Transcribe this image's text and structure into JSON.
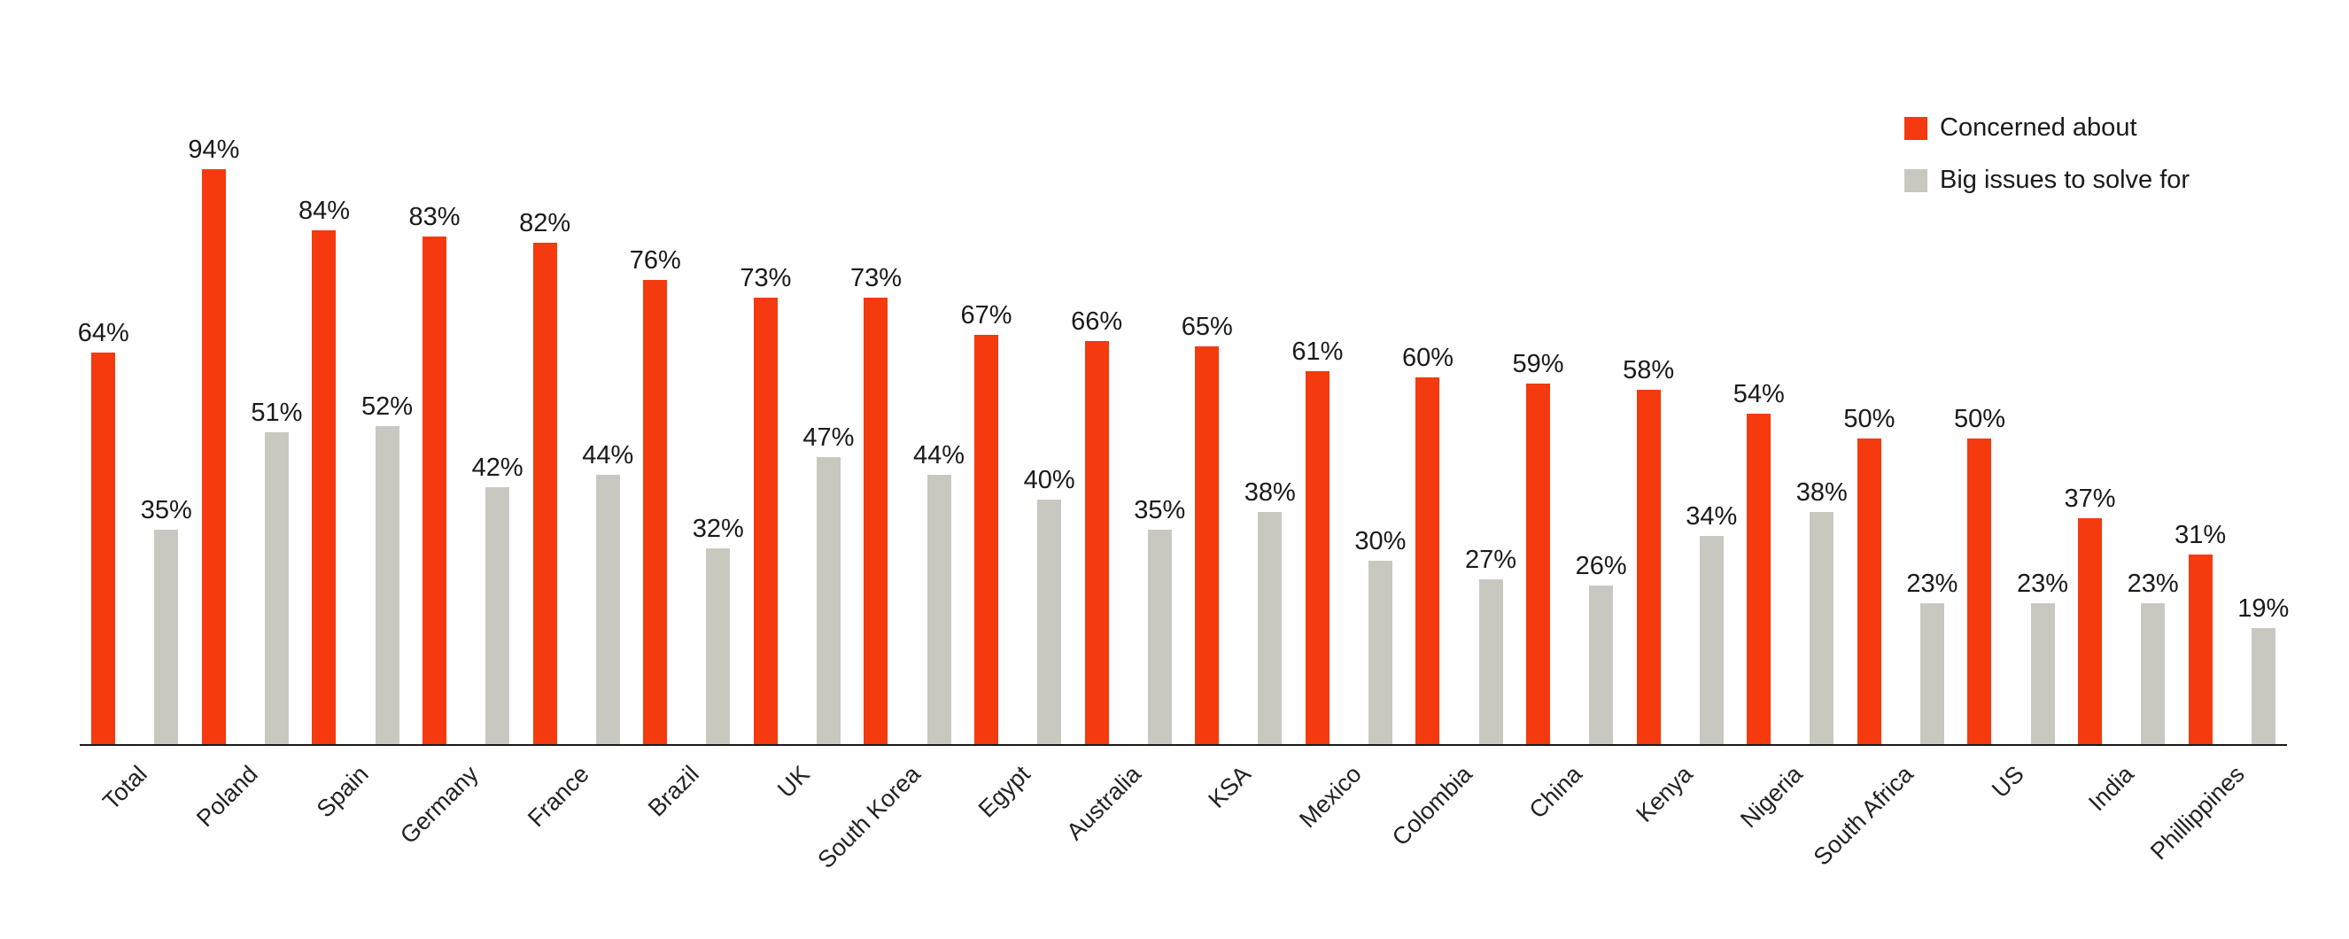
{
  "chart_data": {
    "type": "bar",
    "title": "",
    "xlabel": "",
    "ylabel": "",
    "value_suffix": "%",
    "ylim": [
      0,
      100
    ],
    "grid": false,
    "legend_position": "top-right",
    "categories": [
      "Total",
      "Poland",
      "Spain",
      "Germany",
      "France",
      "Brazil",
      "UK",
      "South Korea",
      "Egypt",
      "Australia",
      "KSA",
      "Mexico",
      "Colombia",
      "China",
      "Kenya",
      "Nigeria",
      "South Africa",
      "US",
      "India",
      "Phillippines"
    ],
    "series": [
      {
        "name": "Concerned about",
        "color": "#F43A0E",
        "values": [
          64,
          94,
          84,
          83,
          82,
          76,
          73,
          73,
          67,
          66,
          65,
          61,
          60,
          59,
          58,
          54,
          50,
          50,
          37,
          31
        ]
      },
      {
        "name": "Big issues to solve for",
        "color": "#C9C8C0",
        "values": [
          35,
          51,
          52,
          42,
          44,
          32,
          47,
          44,
          40,
          35,
          38,
          30,
          27,
          26,
          34,
          38,
          23,
          23,
          23,
          19
        ]
      }
    ]
  },
  "colors": {
    "background": "#ffffff",
    "axis": "#1a1a1a",
    "value_label_text": "#1a1a1a",
    "category_label_text": "#222222"
  }
}
